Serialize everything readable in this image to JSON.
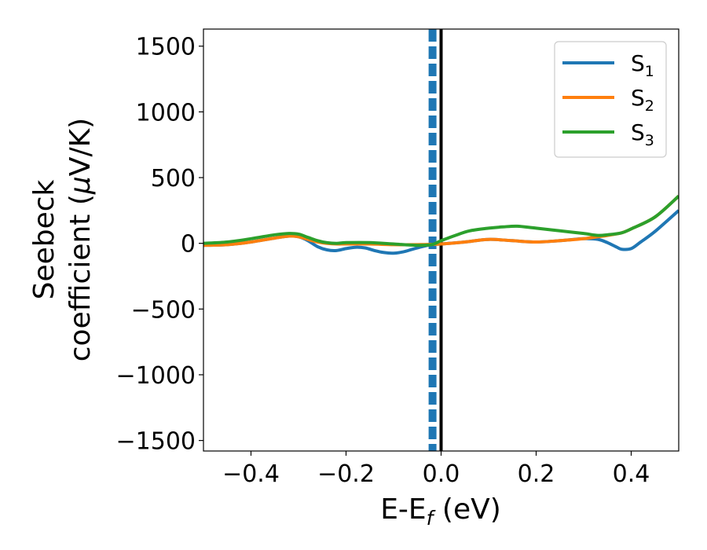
{
  "chart_data": {
    "type": "line",
    "title": "",
    "xlabel": "E-E_f (eV)",
    "xlabel_parts": {
      "main": "E-E",
      "sub": "f",
      "rest": " (eV)"
    },
    "ylabel_line1": "Seebeck",
    "ylabel_line2_prefix": "coefficient  (",
    "ylabel_mu": "μ",
    "ylabel_line2_suffix": "V/K)",
    "xlim": [
      -0.5,
      0.5
    ],
    "ylim": [
      -1580,
      1630
    ],
    "xticks": [
      -0.4,
      -0.2,
      0.0,
      0.2,
      0.4
    ],
    "xtick_labels": [
      "−0.4",
      "−0.2",
      "0.0",
      "0.2",
      "0.4"
    ],
    "yticks": [
      -1500,
      -1000,
      -500,
      0,
      500,
      1000,
      1500
    ],
    "ytick_labels": [
      "−1500",
      "−1000",
      "−500",
      "0",
      "500",
      "1000",
      "1500"
    ],
    "grid": false,
    "legend_position": "top-right",
    "vlines": [
      {
        "x": -0.018,
        "style": "dashed",
        "color": "#1f77b4"
      },
      {
        "x": 0.0,
        "style": "solid",
        "color": "#000000"
      }
    ],
    "series": [
      {
        "name": "S1",
        "label_main": "S",
        "label_sub": "1",
        "color": "#1f77b4",
        "x": [
          -0.5,
          -0.45,
          -0.4,
          -0.35,
          -0.32,
          -0.3,
          -0.28,
          -0.26,
          -0.24,
          -0.22,
          -0.2,
          -0.18,
          -0.16,
          -0.14,
          -0.12,
          -0.1,
          -0.08,
          -0.06,
          -0.04,
          -0.02,
          0.0,
          0.05,
          0.1,
          0.15,
          0.2,
          0.25,
          0.3,
          0.33,
          0.35,
          0.37,
          0.38,
          0.4,
          0.42,
          0.45,
          0.5
        ],
        "y": [
          -15,
          -10,
          10,
          40,
          55,
          50,
          20,
          -25,
          -50,
          -55,
          -40,
          -30,
          -35,
          -55,
          -70,
          -75,
          -65,
          -45,
          -25,
          -10,
          -5,
          10,
          30,
          20,
          10,
          20,
          35,
          30,
          5,
          -30,
          -45,
          -40,
          10,
          90,
          250
        ]
      },
      {
        "name": "S2",
        "label_main": "S",
        "label_sub": "2",
        "color": "#ff7f0e",
        "x": [
          -0.5,
          -0.45,
          -0.4,
          -0.35,
          -0.32,
          -0.3,
          -0.28,
          -0.26,
          -0.24,
          -0.22,
          -0.2,
          -0.15,
          -0.1,
          -0.05,
          0.0,
          0.05,
          0.1,
          0.15,
          0.2,
          0.25,
          0.3,
          0.33,
          0.35,
          0.38,
          0.4,
          0.45,
          0.5
        ],
        "y": [
          -15,
          -10,
          10,
          40,
          55,
          50,
          30,
          10,
          0,
          -5,
          -5,
          -5,
          -10,
          -10,
          -5,
          10,
          30,
          20,
          10,
          20,
          35,
          50,
          60,
          80,
          110,
          200,
          360
        ]
      },
      {
        "name": "S3",
        "label_main": "S",
        "label_sub": "3",
        "color": "#2ca02c",
        "x": [
          -0.5,
          -0.45,
          -0.4,
          -0.35,
          -0.32,
          -0.3,
          -0.28,
          -0.26,
          -0.24,
          -0.22,
          -0.2,
          -0.15,
          -0.1,
          -0.05,
          -0.02,
          0.0,
          0.03,
          0.06,
          0.1,
          0.13,
          0.16,
          0.2,
          0.25,
          0.3,
          0.33,
          0.35,
          0.38,
          0.4,
          0.45,
          0.5
        ],
        "y": [
          0,
          10,
          35,
          65,
          75,
          70,
          45,
          20,
          5,
          0,
          5,
          5,
          -5,
          -15,
          -10,
          20,
          60,
          95,
          115,
          125,
          130,
          115,
          95,
          75,
          60,
          65,
          80,
          110,
          200,
          360
        ]
      }
    ]
  }
}
